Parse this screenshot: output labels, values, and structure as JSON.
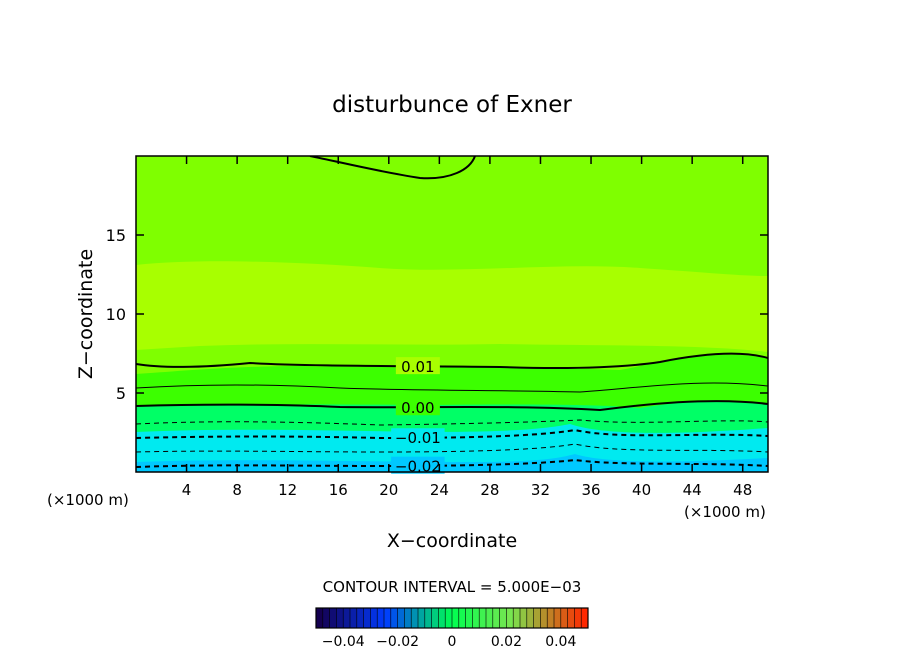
{
  "chart_data": {
    "type": "contour",
    "title": "disturbunce of Exner",
    "xlabel": "X−coordinate",
    "ylabel": "Z−coordinate",
    "x_unit_left": "(×1000 m)",
    "x_unit_right": "(×1000 m)",
    "xlim": [
      0,
      50
    ],
    "ylim": [
      0,
      20
    ],
    "x_ticks": [
      4,
      8,
      12,
      16,
      20,
      24,
      28,
      32,
      36,
      40,
      44,
      48
    ],
    "x_tick_labels": [
      "4",
      "8",
      "12",
      "16",
      "20",
      "24",
      "28",
      "32",
      "36",
      "40",
      "44",
      "48"
    ],
    "y_ticks": [
      5,
      10,
      15
    ],
    "y_tick_labels": [
      "5",
      "10",
      "15"
    ],
    "contour_interval_text": "CONTOUR INTERVAL = 5.000E−03",
    "contour_labels": [
      {
        "text": "0.01",
        "x": 22.3,
        "z": 6.7
      },
      {
        "text": "0.00",
        "x": 22.3,
        "z": 4.1
      },
      {
        "text": "−0.01",
        "x": 22.3,
        "z": 2.2
      },
      {
        "text": "−0.02",
        "x": 22.3,
        "z": 0.4
      }
    ],
    "colorbar": {
      "range": [
        -0.05,
        0.05
      ],
      "tick_values": [
        -0.04,
        -0.02,
        0,
        0.02,
        0.04
      ],
      "tick_labels": [
        "−0.04",
        "−0.02",
        "0",
        "0.02",
        "0.04"
      ]
    },
    "colors": {
      "fill_top": "#7fff00",
      "fill_mid": "#a8ff00",
      "fill_low_green": "#3cff00",
      "fill_cyan": "#00eaf0",
      "fill_deep": "#00c8ff"
    }
  }
}
